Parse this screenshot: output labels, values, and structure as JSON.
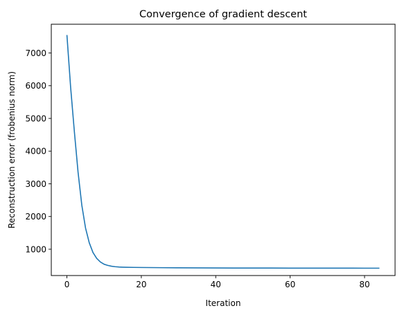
{
  "chart_data": {
    "type": "line",
    "title": "Convergence of gradient descent",
    "xlabel": "Iteration",
    "ylabel": "Reconstruction error (frobenius norm)",
    "xlim": [
      -4.2,
      88.2
    ],
    "ylim": [
      195,
      7880
    ],
    "xticks": [
      0,
      20,
      40,
      60,
      80
    ],
    "yticks": [
      1000,
      2000,
      3000,
      4000,
      5000,
      6000,
      7000
    ],
    "grid": false,
    "series": [
      {
        "color": "#1f77b4",
        "x": [
          0,
          1,
          2,
          3,
          4,
          5,
          6,
          7,
          8,
          9,
          10,
          11,
          12,
          13,
          14,
          15,
          16,
          18,
          20,
          25,
          30,
          35,
          40,
          45,
          50,
          55,
          60,
          65,
          70,
          75,
          80,
          84
        ],
        "y": [
          7550,
          5950,
          4600,
          3350,
          2350,
          1650,
          1200,
          900,
          720,
          610,
          540,
          505,
          480,
          465,
          455,
          450,
          447,
          444,
          441,
          436,
          432,
          429,
          427,
          425,
          424,
          423,
          422,
          422,
          421,
          421,
          420,
          420
        ]
      }
    ]
  }
}
